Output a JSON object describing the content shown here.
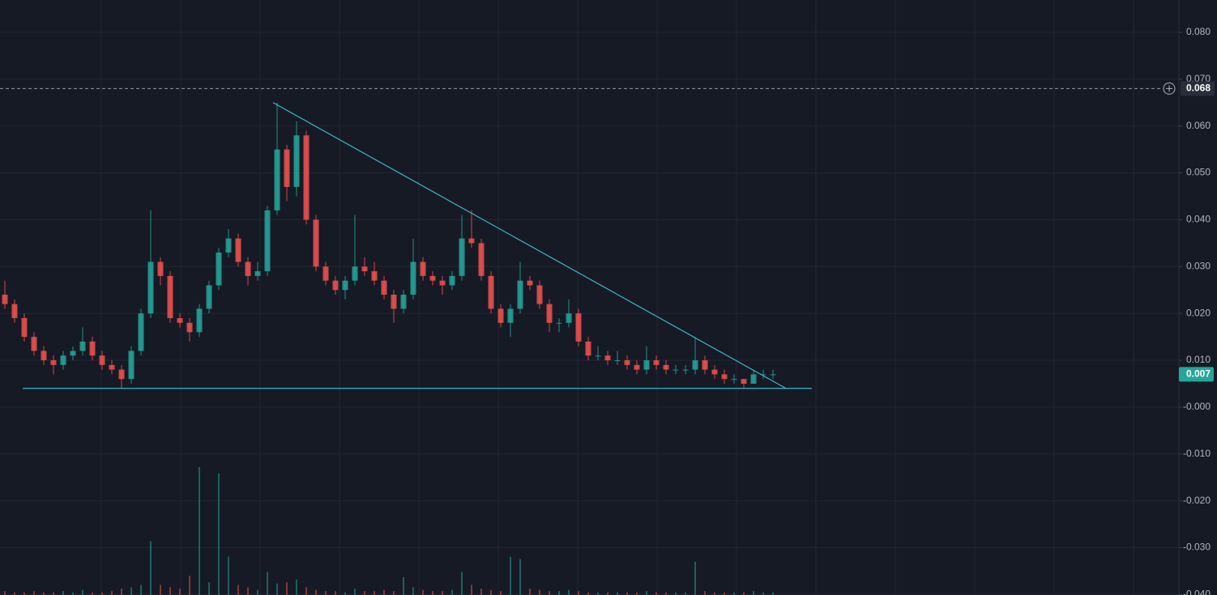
{
  "chart_data": {
    "type": "candlestick",
    "up_color": "#26a69a",
    "down_color": "#ef5350",
    "line_color": "#3fb6c6",
    "ylim": [
      -0.0401,
      0.0869
    ],
    "yticks": [
      {
        "value": 0.08,
        "label": "0.080"
      },
      {
        "value": 0.07,
        "label": "0.070"
      },
      {
        "value": 0.06,
        "label": "0.060"
      },
      {
        "value": 0.05,
        "label": "0.050"
      },
      {
        "value": 0.04,
        "label": "0.040"
      },
      {
        "value": 0.03,
        "label": "0.030"
      },
      {
        "value": 0.02,
        "label": "0.020"
      },
      {
        "value": 0.01,
        "label": "0.010"
      },
      {
        "value": 0,
        "label": "-0.000"
      },
      {
        "value": -0.01,
        "label": "-0.010"
      },
      {
        "value": -0.02,
        "label": "-0.020"
      },
      {
        "value": -0.03,
        "label": "-0.030"
      },
      {
        "value": -0.04,
        "label": "-0.040"
      }
    ],
    "grid": true,
    "crosshair_price": {
      "value": 0.068,
      "label": "0.068"
    },
    "last_price": {
      "value": 0.007,
      "label": "0.007"
    },
    "trendlines": [
      {
        "values": [
          0.065,
          0.004
        ]
      },
      {
        "values": [
          0.004,
          0.004
        ]
      }
    ],
    "ohlc": [
      [
        0.024,
        0.027,
        0.021,
        0.022
      ],
      [
        0.022,
        0.023,
        0.018,
        0.019
      ],
      [
        0.019,
        0.02,
        0.014,
        0.015
      ],
      [
        0.015,
        0.016,
        0.011,
        0.012
      ],
      [
        0.012,
        0.013,
        0.009,
        0.01
      ],
      [
        0.01,
        0.011,
        0.007,
        0.009
      ],
      [
        0.009,
        0.012,
        0.008,
        0.011
      ],
      [
        0.011,
        0.013,
        0.01,
        0.012
      ],
      [
        0.012,
        0.017,
        0.011,
        0.014
      ],
      [
        0.014,
        0.015,
        0.01,
        0.011
      ],
      [
        0.011,
        0.012,
        0.008,
        0.009
      ],
      [
        0.009,
        0.01,
        0.007,
        0.008
      ],
      [
        0.008,
        0.009,
        0.004,
        0.006
      ],
      [
        0.006,
        0.013,
        0.005,
        0.012
      ],
      [
        0.012,
        0.021,
        0.011,
        0.02
      ],
      [
        0.02,
        0.042,
        0.019,
        0.031
      ],
      [
        0.031,
        0.032,
        0.026,
        0.028
      ],
      [
        0.028,
        0.029,
        0.018,
        0.019
      ],
      [
        0.019,
        0.02,
        0.017,
        0.018
      ],
      [
        0.018,
        0.019,
        0.014,
        0.016
      ],
      [
        0.016,
        0.022,
        0.015,
        0.021
      ],
      [
        0.021,
        0.027,
        0.02,
        0.026
      ],
      [
        0.026,
        0.034,
        0.025,
        0.033
      ],
      [
        0.033,
        0.038,
        0.032,
        0.036
      ],
      [
        0.036,
        0.037,
        0.03,
        0.031
      ],
      [
        0.031,
        0.032,
        0.026,
        0.028
      ],
      [
        0.028,
        0.031,
        0.027,
        0.029
      ],
      [
        0.029,
        0.043,
        0.028,
        0.042
      ],
      [
        0.042,
        0.065,
        0.041,
        0.055
      ],
      [
        0.055,
        0.056,
        0.044,
        0.047
      ],
      [
        0.047,
        0.061,
        0.045,
        0.058
      ],
      [
        0.058,
        0.059,
        0.039,
        0.04
      ],
      [
        0.04,
        0.041,
        0.029,
        0.03
      ],
      [
        0.03,
        0.031,
        0.026,
        0.027
      ],
      [
        0.027,
        0.028,
        0.024,
        0.025
      ],
      [
        0.025,
        0.028,
        0.023,
        0.027
      ],
      [
        0.027,
        0.041,
        0.026,
        0.03
      ],
      [
        0.03,
        0.032,
        0.028,
        0.029
      ],
      [
        0.029,
        0.031,
        0.026,
        0.027
      ],
      [
        0.027,
        0.028,
        0.023,
        0.024
      ],
      [
        0.024,
        0.025,
        0.018,
        0.021
      ],
      [
        0.021,
        0.025,
        0.02,
        0.024
      ],
      [
        0.024,
        0.036,
        0.023,
        0.031
      ],
      [
        0.031,
        0.032,
        0.027,
        0.028
      ],
      [
        0.028,
        0.029,
        0.026,
        0.027
      ],
      [
        0.027,
        0.028,
        0.024,
        0.026
      ],
      [
        0.026,
        0.029,
        0.025,
        0.028
      ],
      [
        0.028,
        0.041,
        0.027,
        0.036
      ],
      [
        0.036,
        0.042,
        0.034,
        0.035
      ],
      [
        0.035,
        0.036,
        0.027,
        0.028
      ],
      [
        0.028,
        0.029,
        0.02,
        0.021
      ],
      [
        0.021,
        0.022,
        0.017,
        0.018
      ],
      [
        0.018,
        0.022,
        0.015,
        0.021
      ],
      [
        0.021,
        0.031,
        0.02,
        0.027
      ],
      [
        0.027,
        0.028,
        0.025,
        0.026
      ],
      [
        0.026,
        0.027,
        0.021,
        0.022
      ],
      [
        0.022,
        0.023,
        0.016,
        0.018
      ],
      [
        0.018,
        0.019,
        0.016,
        0.018
      ],
      [
        0.018,
        0.023,
        0.017,
        0.02
      ],
      [
        0.02,
        0.021,
        0.013,
        0.014
      ],
      [
        0.014,
        0.015,
        0.01,
        0.011
      ],
      [
        0.011,
        0.013,
        0.01,
        0.011
      ],
      [
        0.011,
        0.012,
        0.009,
        0.01
      ],
      [
        0.01,
        0.012,
        0.009,
        0.01
      ],
      [
        0.01,
        0.011,
        0.008,
        0.009
      ],
      [
        0.009,
        0.01,
        0.007,
        0.008
      ],
      [
        0.008,
        0.013,
        0.007,
        0.01
      ],
      [
        0.01,
        0.011,
        0.008,
        0.009
      ],
      [
        0.009,
        0.01,
        0.007,
        0.008
      ],
      [
        0.008,
        0.009,
        0.007,
        0.008
      ],
      [
        0.008,
        0.009,
        0.007,
        0.008
      ],
      [
        0.008,
        0.015,
        0.007,
        0.01
      ],
      [
        0.01,
        0.011,
        0.007,
        0.008
      ],
      [
        0.008,
        0.009,
        0.006,
        0.007
      ],
      [
        0.007,
        0.008,
        0.005,
        0.006
      ],
      [
        0.006,
        0.007,
        0.005,
        0.006
      ],
      [
        0.006,
        0.006,
        0.004,
        0.005
      ],
      [
        0.005,
        0.008,
        0.005,
        0.007
      ],
      [
        0.007,
        0.008,
        0.006,
        0.007
      ],
      [
        0.007,
        0.008,
        0.006,
        0.007
      ]
    ],
    "volume_ylim": [
      0,
      100
    ],
    "volume": [
      3,
      2,
      2,
      3,
      2,
      2,
      3,
      2,
      4,
      2,
      2,
      3,
      5,
      6,
      8,
      42,
      8,
      6,
      5,
      15,
      100,
      10,
      95,
      30,
      8,
      6,
      4,
      18,
      9,
      10,
      12,
      6,
      4,
      3,
      3,
      2,
      5,
      3,
      3,
      4,
      3,
      14,
      6,
      4,
      3,
      3,
      4,
      18,
      8,
      5,
      4,
      3,
      30,
      28,
      5,
      4,
      3,
      3,
      4,
      3,
      2,
      2,
      2,
      2,
      2,
      2,
      3,
      2,
      2,
      2,
      2,
      26,
      3,
      2,
      2,
      2,
      2,
      3,
      2,
      2
    ]
  }
}
